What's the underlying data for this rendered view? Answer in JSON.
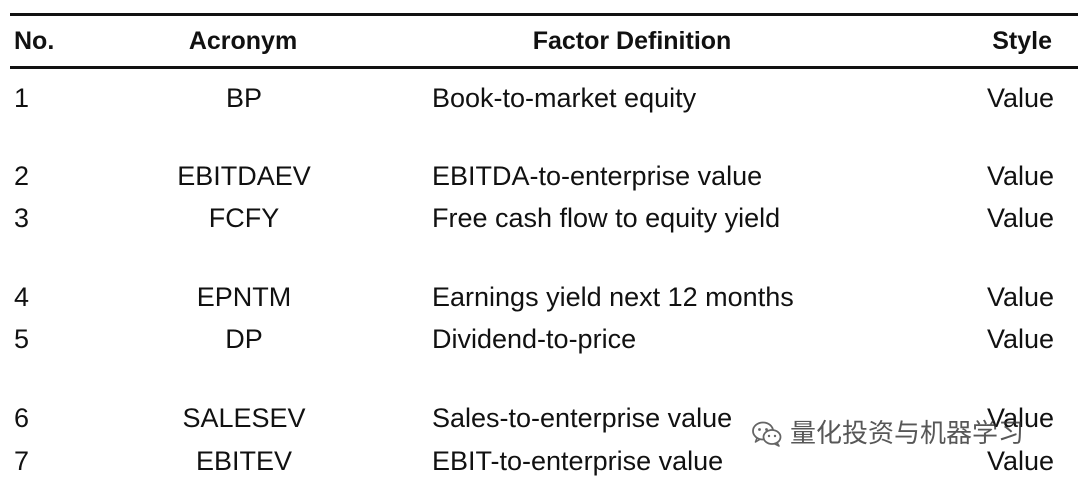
{
  "table": {
    "headers": {
      "no": "No.",
      "acronym": "Acronym",
      "definition": "Factor Definition",
      "style": "Style"
    },
    "rows": [
      {
        "no": "1",
        "acronym": "BP",
        "definition": "Book-to-market equity",
        "style": "Value"
      },
      {
        "no": "2",
        "acronym": "EBITDAEV",
        "definition": "EBITDA-to-enterprise value",
        "style": "Value"
      },
      {
        "no": "3",
        "acronym": "FCFY",
        "definition": "Free cash flow to equity yield",
        "style": "Value"
      },
      {
        "no": "4",
        "acronym": "EPNTM",
        "definition": "Earnings yield next 12 months",
        "style": "Value"
      },
      {
        "no": "5",
        "acronym": "DP",
        "definition": "Dividend-to-price",
        "style": "Value"
      },
      {
        "no": "6",
        "acronym": "SALESEV",
        "definition": "Sales-to-enterprise value",
        "style": "Value"
      },
      {
        "no": "7",
        "acronym": "EBITEV",
        "definition": "EBIT-to-enterprise value",
        "style": "Value"
      }
    ]
  },
  "watermark": {
    "icon": "wechat-icon",
    "text": "量化投资与机器学习"
  }
}
